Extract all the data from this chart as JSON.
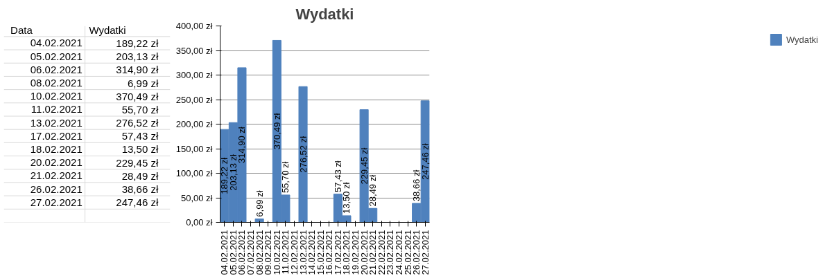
{
  "chart_data": {
    "type": "bar",
    "title": "Wydatki",
    "categories": [
      "04.02.2021",
      "05.02.2021",
      "06.02.2021",
      "07.02.2021",
      "08.02.2021",
      "09.02.2021",
      "10.02.2021",
      "11.02.2021",
      "12.02.2021",
      "13.02.2021",
      "14.02.2021",
      "15.02.2021",
      "16.02.2021",
      "17.02.2021",
      "18.02.2021",
      "19.02.2021",
      "20.02.2021",
      "21.02.2021",
      "22.02.2021",
      "23.02.2021",
      "24.02.2021",
      "25.02.2021",
      "26.02.2021",
      "27.02.2021"
    ],
    "series": [
      {
        "name": "Wydatki",
        "color": "#4f81bd",
        "values": [
          189.22,
          203.13,
          314.9,
          null,
          6.99,
          null,
          370.49,
          55.7,
          null,
          276.52,
          null,
          null,
          null,
          57.43,
          13.5,
          null,
          229.45,
          28.49,
          null,
          null,
          null,
          null,
          38.66,
          247.46
        ],
        "value_labels": [
          "189,22 zł",
          "203,13 zł",
          "314,90 zł",
          null,
          "6,99 zł",
          null,
          "370,49 zł",
          "55,70 zł",
          null,
          "276,52 zł",
          null,
          null,
          null,
          "57,43 zł",
          "13,50 zł",
          null,
          "229,45 zł",
          "28,49 zł",
          null,
          null,
          null,
          null,
          "38,66 zł",
          "247,46 zł"
        ]
      }
    ],
    "ylim": [
      0,
      400
    ],
    "yticks": [
      {
        "value": 0,
        "label": "0,00 zł"
      },
      {
        "value": 50,
        "label": "50,00 zł"
      },
      {
        "value": 100,
        "label": "100,00 zł"
      },
      {
        "value": 150,
        "label": "150,00 zł"
      },
      {
        "value": 200,
        "label": "200,00 zł"
      },
      {
        "value": 250,
        "label": "250,00 zł"
      },
      {
        "value": 300,
        "label": "300,00 zł"
      },
      {
        "value": 350,
        "label": "350,00 zł"
      },
      {
        "value": 400,
        "label": "400,00 zł"
      }
    ],
    "grid": "y",
    "legend": "right",
    "annotations": [
      "Data",
      "Wydatki",
      "04.02.2021",
      "189,22 zł",
      "05.02.2021",
      "203,13 zł",
      "06.02.2021",
      "314,90 zł",
      "08.02.2021",
      "6,99 zł",
      "10.02.2021",
      "370,49 zł",
      "11.02.2021",
      "55,70 zł",
      "13.02.2021",
      "276,52 zł",
      "17.02.2021",
      "57,43 zł",
      "18.02.2021",
      "13,50 zł",
      "20.02.2021",
      "229,45 zł",
      "21.02.2021",
      "28,49 zł",
      "26.02.2021",
      "38,66 zł",
      "27.02.2021",
      "247,46 zł"
    ]
  }
}
